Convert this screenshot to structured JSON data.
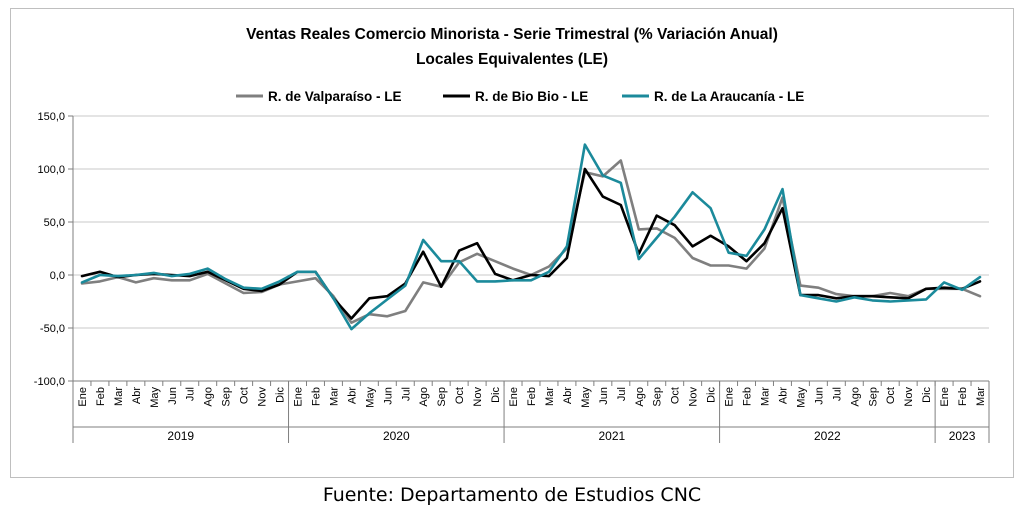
{
  "source_note": "Fuente: Departamento de Estudios CNC",
  "chart_data": {
    "type": "line",
    "title": "Ventas Reales Comercio Minorista - Serie Trimestral (% Variación Anual)",
    "subtitle": "Locales Equivalentes (LE)",
    "xlabel": "",
    "ylabel": "",
    "ylim": [
      -100,
      150
    ],
    "yticks": [
      -100,
      -50,
      0,
      50,
      100,
      150
    ],
    "ytick_labels": [
      "-100,0",
      "-50,0",
      "0,0",
      "50,0",
      "100,0",
      "150,0"
    ],
    "grid": true,
    "legend_position": "top",
    "months": [
      "Ene",
      "Feb",
      "Mar",
      "Abr",
      "May",
      "Jun",
      "Jul",
      "Ago",
      "Sep",
      "Oct",
      "Nov",
      "Dic"
    ],
    "years": [
      {
        "label": "2019",
        "months": 12
      },
      {
        "label": "2020",
        "months": 12
      },
      {
        "label": "2021",
        "months": 12
      },
      {
        "label": "2022",
        "months": 12
      },
      {
        "label": "2023",
        "months": 3
      }
    ],
    "series": [
      {
        "name": "R. de Valparaíso - LE",
        "color": "#7f7f7f",
        "values": [
          -8,
          -6,
          -2,
          -7,
          -3,
          -5,
          -5,
          1,
          -8,
          -17,
          -16,
          -9,
          -6,
          -3,
          -20,
          -45,
          -37,
          -39,
          -34,
          -7,
          -11,
          12,
          20,
          13,
          6,
          0,
          8,
          25,
          97,
          93,
          108,
          43,
          44,
          35,
          16,
          9,
          9,
          6,
          25,
          73,
          -10,
          -12,
          -18,
          -20,
          -20,
          -17,
          -20,
          -13,
          -13,
          -13,
          -20
        ]
      },
      {
        "name": "R. de Bio Bio - LE",
        "color": "#000000",
        "values": [
          -1,
          3,
          -2,
          0,
          1,
          0,
          -1,
          3,
          -5,
          -13,
          -15,
          -9,
          3,
          3,
          -22,
          -41,
          -22,
          -20,
          -8,
          22,
          -11,
          23,
          30,
          1,
          -5,
          0,
          -1,
          16,
          100,
          74,
          66,
          20,
          56,
          47,
          27,
          37,
          27,
          13,
          30,
          63,
          -19,
          -19,
          -22,
          -20,
          -20,
          -21,
          -22,
          -13,
          -12,
          -13,
          -6
        ]
      },
      {
        "name": "R. de La Araucanía - LE",
        "color": "#1b8a9b",
        "values": [
          -7,
          0,
          -1,
          0,
          2,
          -1,
          1,
          6,
          -4,
          -12,
          -13,
          -6,
          3,
          3,
          -22,
          -51,
          -36,
          -23,
          -10,
          33,
          13,
          13,
          -6,
          -6,
          -5,
          -5,
          3,
          27,
          123,
          94,
          87,
          15,
          35,
          55,
          78,
          63,
          21,
          18,
          43,
          81,
          -19,
          -22,
          -25,
          -21,
          -24,
          -25,
          -24,
          -23,
          -7,
          -14,
          -2
        ]
      }
    ]
  }
}
